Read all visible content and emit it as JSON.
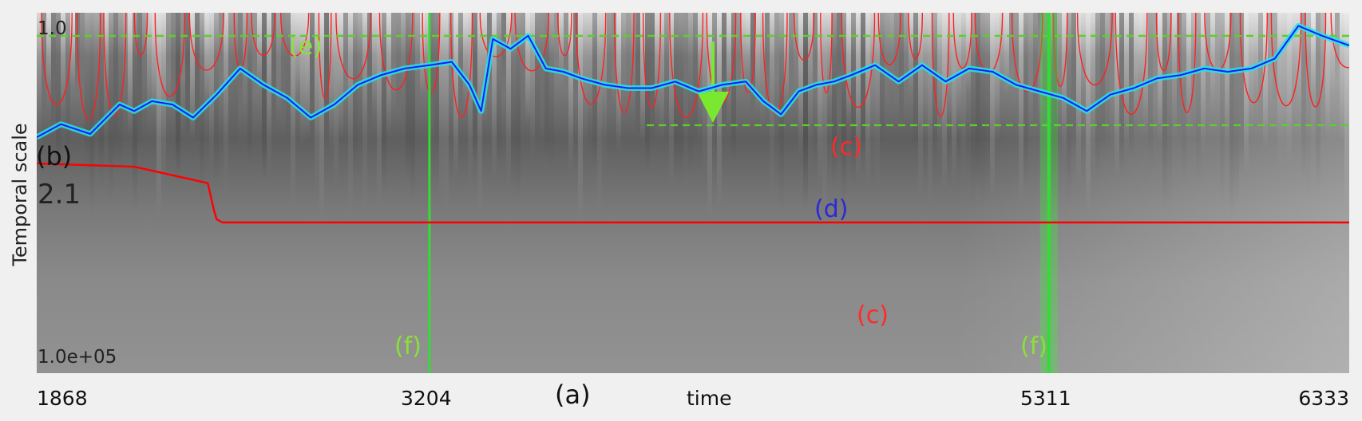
{
  "chart_data": {
    "type": "line",
    "xlabel": "time",
    "ylabel": "Temporal scale",
    "xlim": [
      1868,
      6333
    ],
    "x_ticks": [
      "1868",
      "3204",
      "5311",
      "6333"
    ],
    "y_ticks": [
      "1.0",
      "2.1",
      "1.0e+05"
    ],
    "panel_labels": {
      "a": "(a)",
      "b": "(b)",
      "c_upper": "(c)",
      "c_lower": "(c)",
      "d": "(d)",
      "e": "(e)",
      "f_left": "(f)",
      "f_right": "(f)"
    },
    "markers": {
      "vertical_lines_x": [
        3204,
        5311
      ]
    },
    "series": [
      {
        "id": "signal",
        "color": "#1a1aff",
        "halo_color": "#22e5e5",
        "x": [
          1868,
          1950,
          2050,
          2150,
          2200,
          2260,
          2330,
          2400,
          2480,
          2560,
          2640,
          2720,
          2800,
          2880,
          2960,
          3040,
          3120,
          3204,
          3280,
          3340,
          3380,
          3420,
          3480,
          3540,
          3600,
          3660,
          3720,
          3800,
          3880,
          3960,
          4040,
          4120,
          4200,
          4280,
          4340,
          4400,
          4460,
          4520,
          4580,
          4640,
          4720,
          4800,
          4880,
          4960,
          5040,
          5120,
          5200,
          5280,
          5360,
          5440,
          5520,
          5600,
          5680,
          5760,
          5840,
          5920,
          6000,
          6080,
          6160,
          6240,
          6333
        ],
        "y": [
          0.72,
          0.76,
          0.73,
          0.82,
          0.8,
          0.83,
          0.82,
          0.78,
          0.85,
          0.93,
          0.88,
          0.84,
          0.78,
          0.82,
          0.88,
          0.91,
          0.93,
          0.94,
          0.95,
          0.88,
          0.8,
          1.02,
          0.99,
          1.03,
          0.93,
          0.92,
          0.9,
          0.88,
          0.87,
          0.87,
          0.89,
          0.86,
          0.88,
          0.89,
          0.83,
          0.79,
          0.86,
          0.88,
          0.89,
          0.91,
          0.94,
          0.89,
          0.94,
          0.89,
          0.93,
          0.92,
          0.88,
          0.86,
          0.84,
          0.8,
          0.85,
          0.87,
          0.9,
          0.91,
          0.93,
          0.92,
          0.93,
          0.96,
          1.06,
          1.03,
          1.0
        ]
      },
      {
        "id": "threshold",
        "color": "#ff0000",
        "x": [
          1868,
          2200,
          2450,
          2470,
          2480,
          2500,
          2600,
          6333
        ],
        "y": [
          0.64,
          0.63,
          0.58,
          0.5,
          0.47,
          0.46,
          0.46,
          0.46
        ]
      }
    ]
  }
}
